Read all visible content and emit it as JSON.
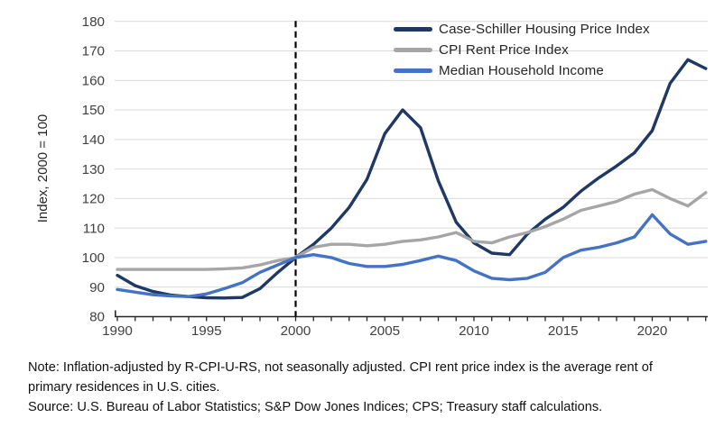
{
  "chart_data": {
    "type": "line",
    "title": "",
    "xlabel": "",
    "ylabel": "Index, 2000 = 100",
    "ylim": [
      80,
      180
    ],
    "ytick_step": 10,
    "xticks": [
      1990,
      1995,
      2000,
      2005,
      2010,
      2015,
      2020
    ],
    "x_start": 1990,
    "x_end": 2023,
    "grid": "horizontal",
    "gridline_color": "#D9D9D9",
    "axis_color": "#262626",
    "tick_label_color": "#404040",
    "legend_position": "top-right",
    "annotations": [
      {
        "type": "vline",
        "x": 2000,
        "style": "dashed",
        "color": "#000000"
      }
    ],
    "x": [
      1990,
      1991,
      1992,
      1993,
      1994,
      1995,
      1996,
      1997,
      1998,
      1999,
      2000,
      2001,
      2002,
      2003,
      2004,
      2005,
      2006,
      2007,
      2008,
      2009,
      2010,
      2011,
      2012,
      2013,
      2014,
      2015,
      2016,
      2017,
      2018,
      2019,
      2020,
      2021,
      2022,
      2023
    ],
    "series": [
      {
        "name": "Case-Schiller Housing Price Index",
        "color": "#1F3864",
        "values": [
          94,
          90.5,
          88.5,
          87.3,
          86.8,
          86.4,
          86.3,
          86.5,
          89.5,
          95,
          100,
          104.5,
          110,
          117,
          126.5,
          142,
          150,
          144,
          126,
          112,
          105,
          101.5,
          101,
          108,
          113,
          117,
          122.5,
          127,
          131,
          135.5,
          143,
          159,
          167,
          164
        ]
      },
      {
        "name": "CPI Rent Price Index",
        "color": "#A6A6A6",
        "values": [
          96,
          96,
          96,
          96,
          96,
          96,
          96.2,
          96.5,
          97.5,
          99,
          100,
          103.5,
          104.5,
          104.5,
          104,
          104.5,
          105.5,
          106,
          107,
          108.5,
          105.5,
          105,
          107,
          108.5,
          110.5,
          113,
          116,
          117.5,
          119,
          121.5,
          123,
          120,
          117.5,
          122
        ]
      },
      {
        "name": "Median Household Income",
        "color": "#4472C4",
        "values": [
          89.2,
          88.3,
          87.4,
          87,
          86.8,
          87.7,
          89.5,
          91.5,
          95,
          97.5,
          100,
          101,
          100,
          98,
          97,
          97,
          97.7,
          99,
          100.5,
          99,
          95.5,
          93,
          92.5,
          93,
          95,
          100,
          102.5,
          103.5,
          105,
          107,
          114.5,
          108,
          104.5,
          105.5
        ]
      }
    ]
  },
  "footnotes": {
    "note": "Note: Inflation-adjusted by R-CPI-U-RS, not seasonally adjusted. CPI rent price index is the average rent of primary residences in U.S. cities.",
    "source": "Source: U.S. Bureau of Labor Statistics; S&P Dow Jones Indices; CPS; Treasury staff calculations."
  }
}
